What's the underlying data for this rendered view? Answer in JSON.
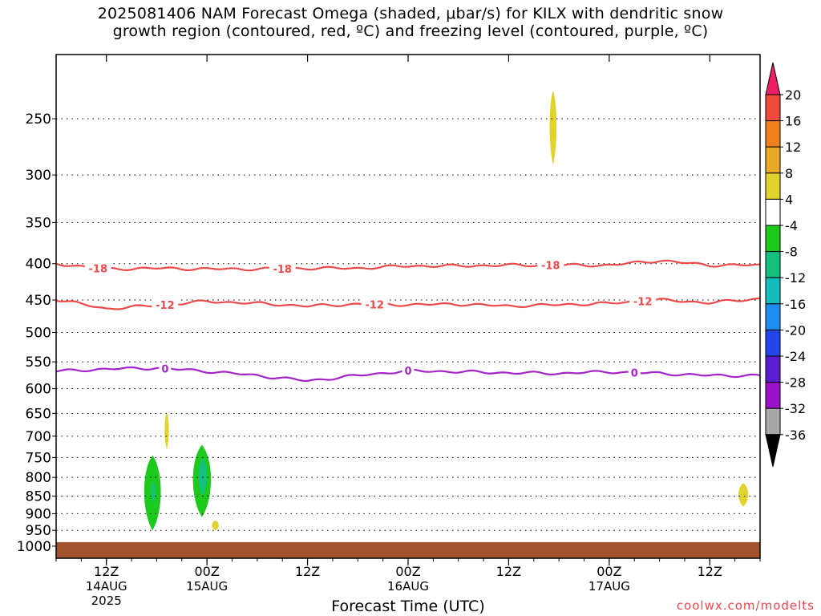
{
  "title": {
    "line1": "2025081406 NAM Forecast Omega (shaded, μbar/s) for KILX with dendritic snow",
    "line2": "growth region (contoured, red, ºC) and freezing level (contoured, purple, ºC)"
  },
  "credit": "coolwx.com/modelts",
  "chart_data": {
    "type": "heatmap",
    "title": "2025081406 NAM Forecast Omega (shaded, μbar/s) for KILX with dendritic snow growth region (contoured, red, ºC) and freezing level (contoured, purple, ºC)",
    "xlabel": "Forecast Time (UTC)",
    "ylabel": "",
    "x_unit": "forecast hour from 2025-08-14 06Z",
    "xlim": [
      0,
      84
    ],
    "ylim_hPa": [
      1000,
      200
    ],
    "y_scale": "log-pressure",
    "grid": true,
    "x_ticks": [
      {
        "hour": 6,
        "label": "12Z",
        "sub1": "14AUG",
        "sub2": "2025"
      },
      {
        "hour": 18,
        "label": "00Z",
        "sub1": "15AUG",
        "sub2": ""
      },
      {
        "hour": 30,
        "label": "12Z",
        "sub1": "",
        "sub2": ""
      },
      {
        "hour": 42,
        "label": "00Z",
        "sub1": "16AUG",
        "sub2": ""
      },
      {
        "hour": 54,
        "label": "12Z",
        "sub1": "",
        "sub2": ""
      },
      {
        "hour": 66,
        "label": "00Z",
        "sub1": "17AUG",
        "sub2": ""
      },
      {
        "hour": 78,
        "label": "12Z",
        "sub1": "",
        "sub2": ""
      }
    ],
    "y_ticks": [
      250,
      300,
      350,
      400,
      450,
      500,
      550,
      600,
      650,
      700,
      750,
      800,
      850,
      900,
      950,
      1000
    ],
    "ground": {
      "from_hPa": 1000,
      "color": "#a0522d"
    },
    "colorbar": {
      "levels": [
        20,
        16,
        12,
        8,
        4,
        -4,
        -8,
        -12,
        -16,
        -20,
        -24,
        -28,
        -32,
        -36
      ],
      "colors": [
        "#ec1e64",
        "#ef4a3a",
        "#ef7f1f",
        "#e8a82a",
        "#e2d22e",
        "#ffffff",
        "#1ec91e",
        "#15c07d",
        "#14bcbc",
        "#1e8cf0",
        "#2445e8",
        "#5a1ed0",
        "#9a12c8",
        "#a8a8a8",
        "#000000"
      ]
    },
    "series": [
      {
        "name": "-18",
        "kind": "contour",
        "color": "#ec4a4a",
        "x": [
          0,
          6,
          12,
          18,
          24,
          30,
          36,
          42,
          48,
          54,
          60,
          66,
          72,
          78,
          84
        ],
        "y": [
          400,
          407,
          406,
          407,
          407,
          406,
          406,
          403,
          403,
          402,
          402,
          402,
          396,
          402,
          402
        ],
        "label_x": [
          5,
          27,
          59
        ]
      },
      {
        "name": "-12",
        "kind": "contour",
        "color": "#ec4a4a",
        "x": [
          0,
          6,
          12,
          18,
          24,
          30,
          36,
          42,
          48,
          54,
          60,
          66,
          72,
          78,
          84
        ],
        "y": [
          449,
          463,
          458,
          452,
          455,
          459,
          456,
          457,
          456,
          459,
          457,
          455,
          450,
          454,
          448
        ],
        "label_x": [
          13,
          38,
          70
        ]
      },
      {
        "name": "0",
        "kind": "contour",
        "color": "#a424c9",
        "x": [
          0,
          6,
          12,
          18,
          24,
          30,
          36,
          42,
          48,
          54,
          60,
          66,
          72,
          78,
          84
        ],
        "y": [
          567,
          563,
          561,
          567,
          575,
          585,
          575,
          566,
          568,
          570,
          571,
          568,
          571,
          575,
          575
        ],
        "label_x": [
          13,
          42,
          69
        ]
      }
    ],
    "omega_regions": [
      {
        "value": 4,
        "color": "#e2d22e",
        "x_center": 59.3,
        "x_halfwidth": 0.5,
        "p_top": 228,
        "p_bottom": 290
      },
      {
        "value": 4,
        "color": "#e2d22e",
        "x_center": 13.2,
        "x_halfwidth": 0.3,
        "p_top": 648,
        "p_bottom": 730
      },
      {
        "value": 4,
        "color": "#e2d22e",
        "x_center": 19.0,
        "x_halfwidth": 0.5,
        "p_top": 920,
        "p_bottom": 950
      },
      {
        "value": 4,
        "color": "#e2d22e",
        "x_center": 82.0,
        "x_halfwidth": 0.7,
        "p_top": 815,
        "p_bottom": 880
      },
      {
        "value": -4,
        "color": "#1ec91e",
        "x_center": 11.5,
        "x_halfwidth": 1.2,
        "p_top": 745,
        "p_bottom": 950
      },
      {
        "value": -8,
        "color": "#15c07d",
        "x_center": 11.6,
        "x_halfwidth": 0.3,
        "p_top": 810,
        "p_bottom": 870
      },
      {
        "value": -4,
        "color": "#1ec91e",
        "x_center": 17.4,
        "x_halfwidth": 1.3,
        "p_top": 720,
        "p_bottom": 910
      },
      {
        "value": -8,
        "color": "#15c07d",
        "x_center": 17.5,
        "x_halfwidth": 0.6,
        "p_top": 750,
        "p_bottom": 850
      }
    ]
  }
}
